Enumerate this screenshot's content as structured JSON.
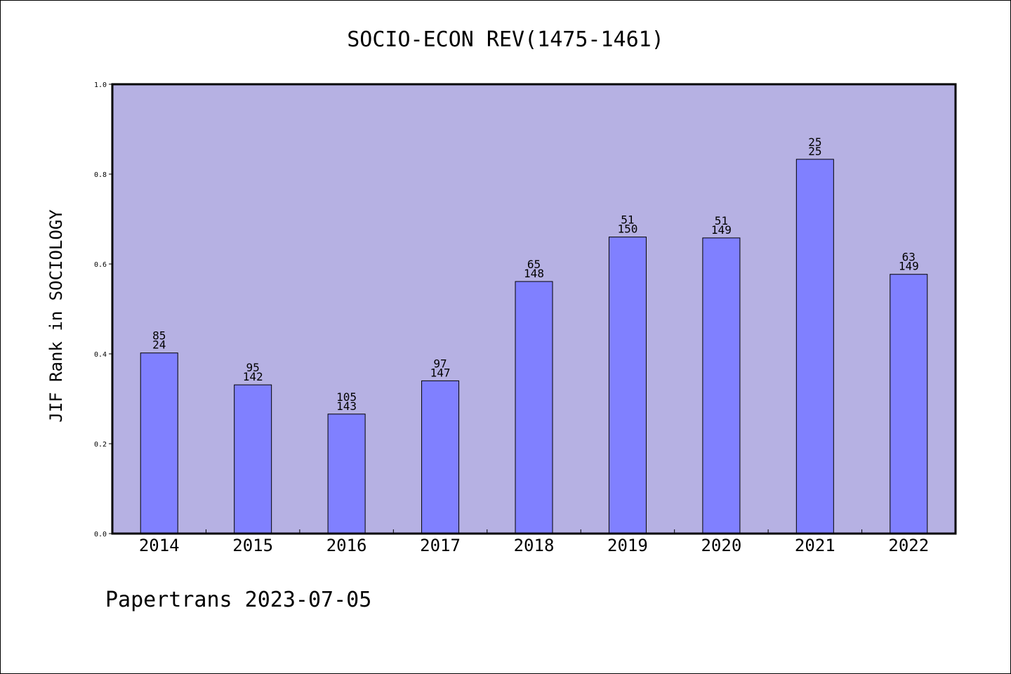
{
  "chart_data": {
    "type": "bar",
    "title": "SOCIO-ECON REV(1475-1461)",
    "ylabel": "JIF Rank in SOCIOLOGY",
    "xlabel": "",
    "categories": [
      "2014",
      "2015",
      "2016",
      "2017",
      "2018",
      "2019",
      "2020",
      "2021",
      "2022"
    ],
    "values": [
      0.402,
      0.331,
      0.266,
      0.34,
      0.561,
      0.66,
      0.658,
      0.833,
      0.577
    ],
    "labels_top": [
      "85",
      "95",
      "105",
      "97",
      "65",
      "51",
      "51",
      "25",
      "63"
    ],
    "labels_bottom": [
      "24",
      "142",
      "143",
      "147",
      "148",
      "150",
      "149",
      "25",
      "149"
    ],
    "ylim": [
      0,
      1.0
    ],
    "yticks": [
      "0.0",
      "0.2",
      "0.4",
      "0.6",
      "0.8",
      "1.0"
    ],
    "grid": false,
    "colors": {
      "plot_background": "#b6b1e3",
      "bar_fill": "#8080ff",
      "bar_edge": "#000000"
    }
  },
  "footer": "Papertrans 2023-07-05"
}
